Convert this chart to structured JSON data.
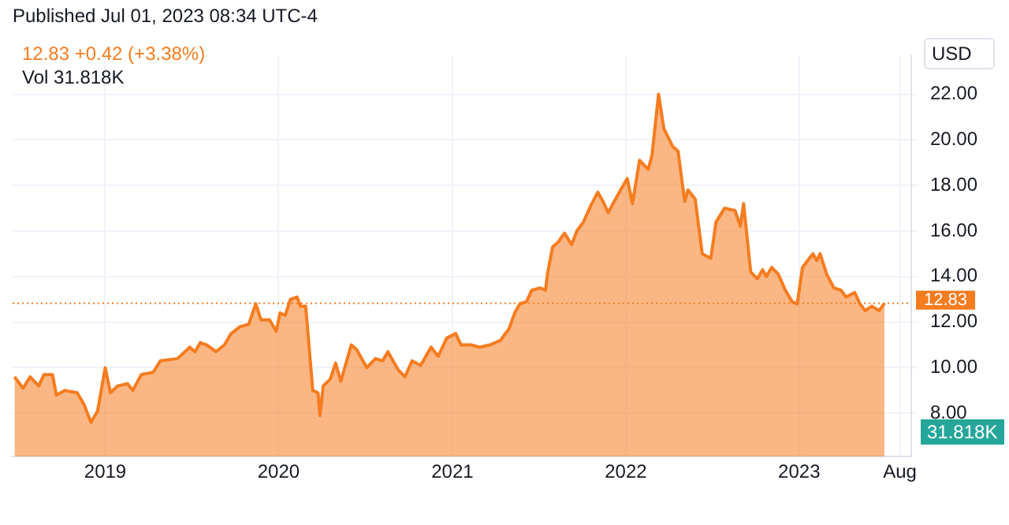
{
  "chart_data": {
    "type": "area",
    "title": "Published Jul 01, 2023 08:34 UTC-4",
    "subtitle": "12.83 +0.42 (+3.38%)",
    "ylabel": "USD",
    "annotations": [
      "Vol 31.818K",
      "31.818K"
    ],
    "x": [
      "2018-06-24",
      "2018-07-12",
      "2018-07-27",
      "2018-08-14",
      "2018-08-25",
      "2018-09-12",
      "2018-09-20",
      "2018-10-08",
      "2018-11-03",
      "2018-11-17",
      "2018-12-02",
      "2018-12-16",
      "2019-01-01",
      "2019-01-12",
      "2019-01-27",
      "2019-02-17",
      "2019-02-28",
      "2019-03-18",
      "2019-04-12",
      "2019-04-27",
      "2019-06-02",
      "2019-06-28",
      "2019-07-09",
      "2019-07-20",
      "2019-08-03",
      "2019-08-22",
      "2019-09-09",
      "2019-09-23",
      "2019-10-12",
      "2019-10-30",
      "2019-11-14",
      "2019-11-25",
      "2019-12-13",
      "2019-12-27",
      "2020-01-04",
      "2020-01-15",
      "2020-01-26",
      "2020-02-09",
      "2020-02-16",
      "2020-02-27",
      "2020-03-13",
      "2020-03-24",
      "2020-03-28",
      "2020-04-04",
      "2020-04-19",
      "2020-04-30",
      "2020-05-11",
      "2020-06-02",
      "2020-06-13",
      "2020-07-05",
      "2020-07-23",
      "2020-08-07",
      "2020-08-18",
      "2020-09-09",
      "2020-09-23",
      "2020-10-08",
      "2020-10-26",
      "2020-11-17",
      "2020-12-02",
      "2020-12-20",
      "2021-01-08",
      "2021-01-19",
      "2021-02-09",
      "2021-02-27",
      "2021-03-21",
      "2021-04-12",
      "2021-04-30",
      "2021-05-12",
      "2021-05-23",
      "2021-06-06",
      "2021-06-17",
      "2021-07-05",
      "2021-07-16",
      "2021-07-20",
      "2021-07-31",
      "2021-08-11",
      "2021-08-25",
      "2021-09-09",
      "2021-09-20",
      "2021-10-04",
      "2021-10-19",
      "2021-11-03",
      "2021-11-14",
      "2021-11-25",
      "2021-12-05",
      "2021-12-24",
      "2022-01-04",
      "2022-01-15",
      "2022-01-30",
      "2022-02-17",
      "2022-02-25",
      "2022-03-11",
      "2022-03-22",
      "2022-04-10",
      "2022-04-21",
      "2022-05-05",
      "2022-05-12",
      "2022-05-27",
      "2022-06-11",
      "2022-06-29",
      "2022-07-10",
      "2022-07-28",
      "2022-08-19",
      "2022-08-30",
      "2022-09-06",
      "2022-09-21",
      "2022-10-05",
      "2022-10-16",
      "2022-10-24",
      "2022-11-04",
      "2022-11-18",
      "2022-12-03",
      "2022-12-17",
      "2022-12-28",
      "2023-01-08",
      "2023-01-19",
      "2023-01-30",
      "2023-02-07",
      "2023-02-14",
      "2023-02-28",
      "2023-03-15",
      "2023-03-30",
      "2023-04-10",
      "2023-04-28",
      "2023-05-09",
      "2023-05-20",
      "2023-06-03",
      "2023-06-18",
      "2023-06-30"
    ],
    "series": [
      {
        "color": "#f57c1f",
        "values": [
          9.6,
          9.1,
          9.6,
          9.2,
          9.7,
          9.7,
          8.8,
          9.0,
          8.9,
          8.4,
          7.6,
          8.1,
          10.0,
          8.9,
          9.2,
          9.3,
          9.0,
          9.7,
          9.8,
          10.3,
          10.4,
          10.9,
          10.7,
          11.1,
          11.0,
          10.7,
          11.0,
          11.5,
          11.8,
          11.9,
          12.8,
          12.1,
          12.1,
          11.6,
          12.4,
          12.3,
          13.0,
          13.1,
          12.7,
          12.7,
          9.0,
          8.9,
          7.9,
          9.2,
          9.5,
          10.2,
          9.4,
          11.0,
          10.8,
          10.0,
          10.4,
          10.3,
          10.7,
          9.9,
          9.6,
          10.3,
          10.1,
          10.9,
          10.5,
          11.3,
          11.5,
          11.0,
          11.0,
          10.9,
          11.0,
          11.2,
          11.7,
          12.4,
          12.8,
          12.9,
          13.4,
          13.5,
          13.4,
          14.1,
          15.3,
          15.5,
          15.9,
          15.4,
          16.0,
          16.4,
          17.1,
          17.7,
          17.3,
          16.8,
          17.2,
          17.9,
          18.3,
          17.2,
          19.1,
          18.7,
          19.3,
          22.0,
          20.5,
          19.7,
          19.5,
          17.3,
          17.8,
          17.4,
          15.0,
          14.8,
          16.4,
          17.0,
          16.9,
          16.2,
          17.2,
          14.2,
          13.9,
          14.3,
          14.0,
          14.4,
          14.1,
          13.4,
          12.9,
          12.8,
          14.4,
          14.7,
          15.0,
          14.7,
          15.0,
          14.1,
          13.5,
          13.4,
          13.1,
          13.3,
          12.8,
          12.5,
          12.7,
          12.5,
          12.83
        ]
      }
    ],
    "xlim": [
      "2018-06-20",
      "2023-08-25"
    ],
    "xticks": [
      {
        "value": "2019-01-01",
        "label": "2019"
      },
      {
        "value": "2020-01-01",
        "label": "2020"
      },
      {
        "value": "2021-01-01",
        "label": "2021"
      },
      {
        "value": "2022-01-01",
        "label": "2022"
      },
      {
        "value": "2023-01-01",
        "label": "2023"
      },
      {
        "value": "2023-08-01",
        "label": "Aug"
      }
    ],
    "ylim": [
      6.1,
      23.7
    ],
    "yticks": [
      {
        "value": 8,
        "label": "8.00"
      },
      {
        "value": 10,
        "label": "10.00"
      },
      {
        "value": 12,
        "label": "12.00"
      },
      {
        "value": 14,
        "label": "14.00"
      },
      {
        "value": 16,
        "label": "16.00"
      },
      {
        "value": 18,
        "label": "18.00"
      },
      {
        "value": 20,
        "label": "20.00"
      },
      {
        "value": 22,
        "label": "22.00"
      }
    ],
    "ref_lines": [
      {
        "axis": "y",
        "value": 12.83,
        "label": "12.83",
        "color": "#f57c1f",
        "line_style": "dotted"
      }
    ],
    "grid": true,
    "legend": false,
    "marker": "none"
  }
}
